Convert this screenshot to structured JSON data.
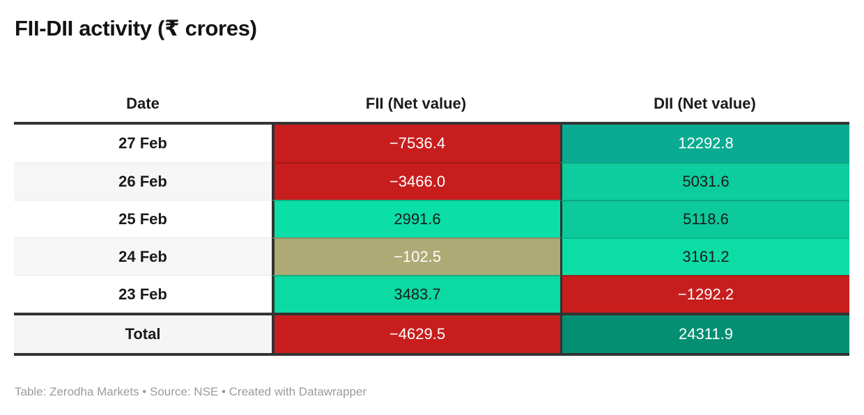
{
  "title": "FII-DII activity (₹ crores)",
  "footer": "Table: Zerodha Markets • Source: NSE • Created with Datawrapper",
  "table": {
    "columns": [
      "Date",
      "FII (Net value)",
      "DII (Net value)"
    ],
    "rows": [
      {
        "date": "27 Feb",
        "fii": "−7536.4",
        "dii": "12292.8",
        "date_bg": "#ffffff",
        "fii_bg": "#c71e1d",
        "fii_color": "#ffffff",
        "dii_bg": "#0aab92",
        "dii_color": "#ffffff"
      },
      {
        "date": "26 Feb",
        "fii": "−3466.0",
        "dii": "5031.6",
        "date_bg": "#f6f6f6",
        "fii_bg": "#c71e1d",
        "fii_color": "#ffffff",
        "dii_bg": "#0dcc9d",
        "dii_color": "#1a1a1a"
      },
      {
        "date": "25 Feb",
        "fii": "2991.6",
        "dii": "5118.6",
        "date_bg": "#ffffff",
        "fii_bg": "#0bdfa7",
        "fii_color": "#1a1a1a",
        "dii_bg": "#0cca9b",
        "dii_color": "#1a1a1a"
      },
      {
        "date": "24 Feb",
        "fii": "−102.5",
        "dii": "3161.2",
        "date_bg": "#f6f6f6",
        "fii_bg": "#adaa75",
        "fii_color": "#ffffff",
        "dii_bg": "#0bdda5",
        "dii_color": "#1a1a1a"
      },
      {
        "date": "23 Feb",
        "fii": "3483.7",
        "dii": "−1292.2",
        "date_bg": "#ffffff",
        "fii_bg": "#0bdaa2",
        "fii_color": "#1a1a1a",
        "dii_bg": "#c71e1d",
        "dii_color": "#ffffff"
      }
    ],
    "total": {
      "date": "Total",
      "fii": "−4629.5",
      "dii": "24311.9",
      "date_bg": "#f5f5f5",
      "fii_bg": "#c71e1d",
      "fii_color": "#ffffff",
      "dii_bg": "#058f72",
      "dii_color": "#ffffff"
    }
  },
  "colors": {
    "border_dark": "#333333",
    "negative_red": "#c71e1d",
    "neutral_olive": "#adaa75",
    "positive_green_dark": "#058f72",
    "row_alt_gray": "#f6f6f6"
  },
  "chart_data": {
    "type": "table",
    "title": "FII-DII activity (₹ crores)",
    "columns": [
      "Date",
      "FII (Net value)",
      "DII (Net value)"
    ],
    "rows": [
      [
        "27 Feb",
        -7536.4,
        12292.8
      ],
      [
        "26 Feb",
        -3466.0,
        5031.6
      ],
      [
        "25 Feb",
        2991.6,
        5118.6
      ],
      [
        "24 Feb",
        -102.5,
        3161.2
      ],
      [
        "23 Feb",
        3483.7,
        -1292.2
      ],
      [
        "Total",
        -4629.5,
        24311.9
      ]
    ],
    "cell_coloring": "heatmap: negative values red, small negative olive, positive values green with darker shade for larger magnitude",
    "notes": "Table: Zerodha Markets • Source: NSE • Created with Datawrapper"
  }
}
